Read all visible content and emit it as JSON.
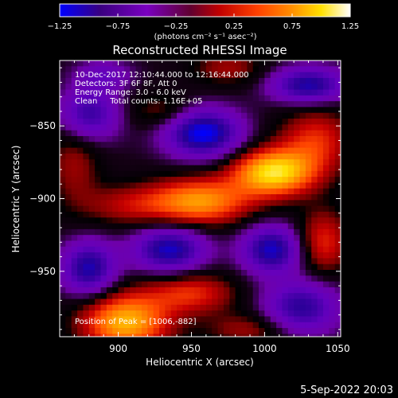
{
  "chart_data": {
    "type": "heatmap",
    "title": "Reconstructed RHESSI Image",
    "xlabel": "Heliocentric X (arcsec)",
    "ylabel": "Heliocentric Y (arcsec)",
    "xlim": [
      860,
      1052
    ],
    "ylim": [
      -995,
      -805
    ],
    "x_ticks": [
      {
        "value": 900,
        "label": "900"
      },
      {
        "value": 950,
        "label": "950"
      },
      {
        "value": 1000,
        "label": "1000"
      },
      {
        "value": 1050,
        "label": "1050"
      }
    ],
    "y_ticks": [
      {
        "value": -850,
        "label": "−850"
      },
      {
        "value": -900,
        "label": "−900"
      },
      {
        "value": -950,
        "label": "−950"
      }
    ],
    "colorbar": {
      "range": [
        -1.25,
        1.25
      ],
      "ticks": [
        {
          "value": -1.25,
          "label": "−1.25"
        },
        {
          "value": -0.75,
          "label": "−0.75"
        },
        {
          "value": -0.25,
          "label": "−0.25"
        },
        {
          "value": 0.25,
          "label": "0.25"
        },
        {
          "value": 0.75,
          "label": "0.75"
        },
        {
          "value": 1.25,
          "label": "1.25"
        }
      ],
      "unit_label": "(photons cm⁻² s⁻¹ asec⁻²)",
      "colors": [
        "#0000ff",
        "#3a0080",
        "#7a00c0",
        "#c00000",
        "#ff4000",
        "#ff9000",
        "#ffe000",
        "#ffffff"
      ]
    },
    "annotations": [
      "10-Dec-2017 12:10:44.000 to 12:16:44.000",
      "Detectors: 3F 6F 8F, Att 0",
      "Energy Range: 3.0 - 6.0 keV",
      "Clean     Total counts: 1.16E+05",
      "Position of Peak = [1006,-882]"
    ],
    "peak": {
      "x": 1006,
      "y": -882
    }
  },
  "footer": {
    "date": "5-Sep-2022 20:03"
  }
}
